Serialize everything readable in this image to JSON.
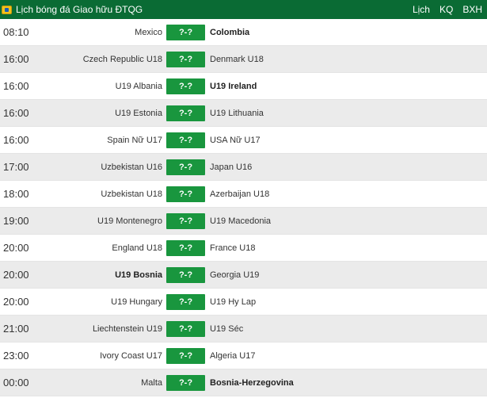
{
  "header": {
    "title": "Lịch bóng đá Giao hữu ĐTQG",
    "nav": [
      "Lịch",
      "KQ",
      "BXH"
    ]
  },
  "matches": [
    {
      "time": "08:10",
      "home": "Mexico",
      "score": "?-?",
      "away": "Colombia",
      "bold_home": false,
      "bold_away": true
    },
    {
      "time": "16:00",
      "home": "Czech Republic U18",
      "score": "?-?",
      "away": "Denmark U18",
      "bold_home": false,
      "bold_away": false
    },
    {
      "time": "16:00",
      "home": "U19 Albania",
      "score": "?-?",
      "away": "U19 Ireland",
      "bold_home": false,
      "bold_away": true
    },
    {
      "time": "16:00",
      "home": "U19 Estonia",
      "score": "?-?",
      "away": "U19 Lithuania",
      "bold_home": false,
      "bold_away": false
    },
    {
      "time": "16:00",
      "home": "Spain Nữ U17",
      "score": "?-?",
      "away": "USA Nữ U17",
      "bold_home": false,
      "bold_away": false
    },
    {
      "time": "17:00",
      "home": "Uzbekistan U16",
      "score": "?-?",
      "away": "Japan U16",
      "bold_home": false,
      "bold_away": false
    },
    {
      "time": "18:00",
      "home": "Uzbekistan U18",
      "score": "?-?",
      "away": "Azerbaijan U18",
      "bold_home": false,
      "bold_away": false
    },
    {
      "time": "19:00",
      "home": "U19 Montenegro",
      "score": "?-?",
      "away": "U19 Macedonia",
      "bold_home": false,
      "bold_away": false
    },
    {
      "time": "20:00",
      "home": "England U18",
      "score": "?-?",
      "away": "France U18",
      "bold_home": false,
      "bold_away": false
    },
    {
      "time": "20:00",
      "home": "U19 Bosnia",
      "score": "?-?",
      "away": "Georgia U19",
      "bold_home": true,
      "bold_away": false
    },
    {
      "time": "20:00",
      "home": "U19 Hungary",
      "score": "?-?",
      "away": "U19 Hy Lap",
      "bold_home": false,
      "bold_away": false
    },
    {
      "time": "21:00",
      "home": "Liechtenstein U19",
      "score": "?-?",
      "away": "U19 Séc",
      "bold_home": false,
      "bold_away": false
    },
    {
      "time": "23:00",
      "home": "Ivory Coast U17",
      "score": "?-?",
      "away": "Algeria U17",
      "bold_home": false,
      "bold_away": false
    },
    {
      "time": "00:00",
      "home": "Malta",
      "score": "?-?",
      "away": "Bosnia-Herzegovina",
      "bold_home": false,
      "bold_away": true
    }
  ]
}
